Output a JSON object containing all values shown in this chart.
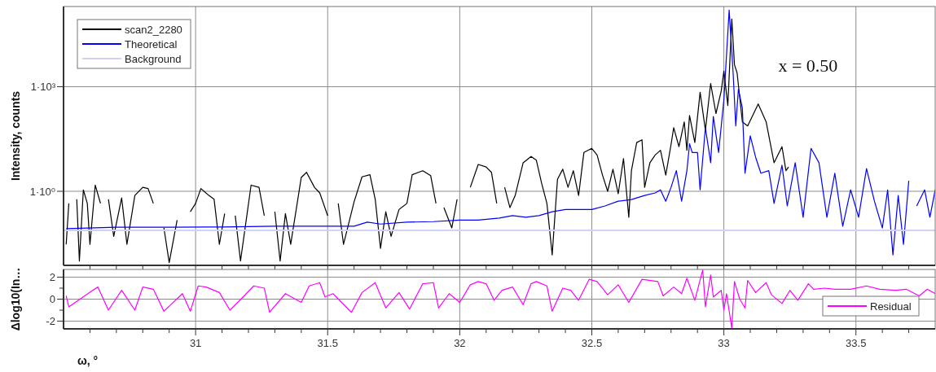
{
  "chart_data": [
    {
      "type": "line",
      "ylabel": "Intensity, counts",
      "log": "y",
      "xlim": [
        30.5,
        33.8
      ],
      "ylim": [
        0.0075,
        200000
      ],
      "xticks": [
        {
          "value": 30.6,
          "label": null
        },
        {
          "value": 30.7,
          "label": null
        },
        {
          "value": 30.8,
          "label": null
        },
        {
          "value": 30.9,
          "label": null
        },
        31,
        {
          "value": 31.1,
          "label": null
        },
        {
          "value": 31.2,
          "label": null
        },
        {
          "value": 31.3,
          "label": null
        },
        {
          "value": 31.4,
          "label": null
        },
        31.5,
        {
          "value": 31.6,
          "label": null
        },
        {
          "value": 31.7,
          "label": null
        },
        {
          "value": 31.8,
          "label": null
        },
        {
          "value": 31.9,
          "label": null
        },
        32,
        {
          "value": 32.1,
          "label": null
        },
        {
          "value": 32.2,
          "label": null
        },
        {
          "value": 32.3,
          "label": null
        },
        {
          "value": 32.4,
          "label": null
        },
        32.5,
        {
          "value": 32.6,
          "label": null
        },
        {
          "value": 32.7,
          "label": null
        },
        {
          "value": 32.8,
          "label": null
        },
        {
          "value": 32.9,
          "label": null
        },
        33,
        {
          "value": 33.1,
          "label": null
        },
        {
          "value": 33.2,
          "label": null
        },
        {
          "value": 33.3,
          "label": null
        },
        {
          "value": 33.4,
          "label": null
        },
        33.5,
        {
          "value": 33.6,
          "label": null
        },
        {
          "value": 33.7,
          "label": null
        }
      ],
      "yticks": [
        {
          "value": 1,
          "label": "1·10⁰"
        },
        {
          "value": 1000,
          "label": "1·10³"
        }
      ],
      "tick_labels": "y",
      "grid": true,
      "legend": "top left",
      "annotations": [
        "x = 0.50"
      ],
      "series": [
        {
          "name": "scan2_2280",
          "color": "#000000",
          "x": [
            30.51,
            30.52,
            30.53,
            30.55,
            30.56,
            30.575,
            30.59,
            30.6,
            30.62,
            30.64,
            30.65,
            30.67,
            30.69,
            30.72,
            30.74,
            30.77,
            30.8,
            30.82,
            30.84,
            30.86,
            30.88,
            30.9,
            30.93,
            30.96,
            30.98,
            31,
            31.02,
            31.05,
            31.07,
            31.09,
            31.11,
            31.13,
            31.15,
            31.17,
            31.21,
            31.24,
            31.26,
            31.28,
            31.3,
            31.32,
            31.34,
            31.36,
            31.4,
            31.42,
            31.45,
            31.47,
            31.5,
            31.52,
            31.54,
            31.56,
            31.6,
            31.63,
            31.66,
            31.68,
            31.7,
            31.72,
            31.74,
            31.77,
            31.8,
            31.82,
            31.86,
            31.89,
            31.91,
            31.92,
            31.94,
            31.97,
            31.99,
            32.02,
            32.04,
            32.07,
            32.1,
            32.12,
            32.14,
            32.15,
            32.17,
            32.19,
            32.21,
            32.24,
            32.27,
            32.29,
            32.31,
            32.33,
            32.35,
            32.37,
            32.39,
            32.41,
            32.43,
            32.45,
            32.47,
            32.5,
            32.52,
            32.54,
            32.56,
            32.58,
            32.6,
            32.62,
            32.64,
            32.65,
            32.67,
            32.69,
            32.7,
            32.72,
            32.74,
            32.76,
            32.78,
            32.8,
            32.81,
            32.83,
            32.85,
            32.86,
            32.87,
            32.89,
            32.91,
            32.93,
            32.95,
            32.97,
            32.99,
            33,
            33.015,
            33.03,
            33.04,
            33.05,
            33.07,
            33.09,
            33.13,
            33.16,
            33.19,
            33.22,
            33.235,
            33.245
          ],
          "values": [
            0.03,
            0.45,
            null,
            0.59,
            0.01,
            1.1,
            0.45,
            0.03,
            1.5,
            0.45,
            null,
            0.59,
            0.051,
            0.65,
            0.03,
            0.76,
            1.3,
            1.2,
            0.45,
            null,
            0.089,
            0.009,
            0.15,
            null,
            0.26,
            0.45,
            1.2,
            0.76,
            0.59,
            0.03,
            0.23,
            null,
            0.2,
            0.01,
            1.5,
            1.3,
            0.2,
            null,
            0.26,
            0.01,
            0.23,
            0.03,
            2.5,
            3.5,
            1.3,
            0.9,
            0.2,
            null,
            0.45,
            0.03,
            0.5,
            2.6,
            3,
            0.59,
            0.023,
            0.26,
            0.051,
            0.3,
            0.45,
            3,
            3.9,
            2.8,
            0.45,
            null,
            0.34,
            0.089,
            0.59,
            null,
            1.3,
            5.9,
            5,
            3.5,
            0.45,
            null,
            1.3,
            0.34,
            0.76,
            6.6,
            10,
            7.8,
            1.7,
            0.45,
            0.015,
            2.2,
            4.3,
            1.3,
            3.9,
            0.76,
            13,
            17,
            11,
            3,
            1,
            4.3,
            0.85,
            8.7,
            0.18,
            3.9,
            25,
            30,
            1.3,
            6.6,
            11,
            15,
            2.9,
            22,
            67,
            19,
            98,
            15,
            150,
            25,
            690,
            57,
            1240,
            170,
            760,
            2800,
            290,
            88000,
            4300,
            2500,
            98,
            75,
            320,
            98,
            6.6,
            19,
            3.9,
            5
          ]
        },
        {
          "name": "Theoretical",
          "color": "#0000ff",
          "x": [
            30.51,
            30.7,
            30.9,
            31.1,
            31.3,
            31.5,
            31.6,
            31.65,
            31.7,
            31.8,
            31.9,
            32,
            32.07,
            32.15,
            32.2,
            32.25,
            32.3,
            32.35,
            32.4,
            32.45,
            32.5,
            32.55,
            32.6,
            32.65,
            32.7,
            32.74,
            32.76,
            32.78,
            32.8,
            32.82,
            32.84,
            32.86,
            32.87,
            32.88,
            32.9,
            32.91,
            32.93,
            32.95,
            32.96,
            32.98,
            33,
            33.02,
            33.035,
            33.045,
            33.055,
            33.07,
            33.08,
            33.1,
            33.12,
            33.14,
            33.17,
            33.19,
            33.22,
            33.24,
            33.27,
            33.3,
            33.33,
            33.36,
            33.39,
            33.42,
            33.45,
            33.48,
            33.51,
            33.54,
            33.57,
            33.6,
            33.62,
            33.64,
            33.66,
            33.68,
            33.7,
            33.71,
            33.73,
            33.76,
            33.78,
            33.8
          ],
          "values": [
            0.085,
            0.093,
            0.093,
            0.095,
            0.1,
            0.1,
            0.1,
            0.13,
            0.115,
            0.13,
            0.135,
            0.15,
            0.15,
            0.17,
            0.2,
            0.18,
            0.2,
            0.26,
            0.3,
            0.3,
            0.3,
            0.38,
            0.52,
            0.58,
            0.76,
            0.9,
            1.1,
            0.52,
            1.3,
            3.9,
            0.52,
            3.9,
            23,
            13,
            13,
            1.1,
            67,
            6.6,
            140,
            13,
            420,
            158000,
            2500,
            75,
            850,
            245,
            3.3,
            39,
            9.6,
            3.3,
            3.9,
            0.45,
            5.6,
            0.38,
            6.6,
            0.18,
            17,
            6.6,
            0.18,
            3.3,
            0.1,
            1.1,
            0.18,
            4.5,
            0.52,
            0.088,
            1.1,
            0.015,
            0.76,
            0.03,
            2,
            null,
            0.38,
            1.1,
            0.18,
            1.1
          ]
        },
        {
          "name": "Background",
          "color": "#d0d0f8",
          "x": [
            30.5,
            33.8
          ],
          "values": [
            0.076,
            0.076
          ]
        }
      ]
    },
    {
      "type": "line",
      "ylabel": "Δlog10(In…",
      "xlabel": "ω, °",
      "xlim": [
        30.5,
        33.8
      ],
      "ylim": [
        -2.7,
        2.7
      ],
      "xticks": [
        {
          "value": 30.6,
          "label": null
        },
        {
          "value": 30.7,
          "label": null
        },
        {
          "value": 30.8,
          "label": null
        },
        {
          "value": 30.9,
          "label": null
        },
        31,
        {
          "value": 31.1,
          "label": null
        },
        {
          "value": 31.2,
          "label": null
        },
        {
          "value": 31.3,
          "label": null
        },
        {
          "value": 31.4,
          "label": null
        },
        31.5,
        {
          "value": 31.6,
          "label": null
        },
        {
          "value": 31.7,
          "label": null
        },
        {
          "value": 31.8,
          "label": null
        },
        {
          "value": 31.9,
          "label": null
        },
        32,
        {
          "value": 32.1,
          "label": null
        },
        {
          "value": 32.2,
          "label": null
        },
        {
          "value": 32.3,
          "label": null
        },
        {
          "value": 32.4,
          "label": null
        },
        32.5,
        {
          "value": 32.6,
          "label": null
        },
        {
          "value": 32.7,
          "label": null
        },
        {
          "value": 32.8,
          "label": null
        },
        {
          "value": 32.9,
          "label": null
        },
        33,
        {
          "value": 33.1,
          "label": null
        },
        {
          "value": 33.2,
          "label": null
        },
        {
          "value": 33.3,
          "label": null
        },
        {
          "value": 33.4,
          "label": null
        },
        33.5,
        {
          "value": 33.6,
          "label": null
        },
        {
          "value": 33.7,
          "label": null
        }
      ],
      "yticks": [
        -2,
        {
          "value": -1,
          "label": null
        },
        0,
        {
          "value": 1,
          "label": null
        },
        2
      ],
      "grid": true,
      "legend": "bottom right",
      "series": [
        {
          "name": "Residual",
          "color": "#ff00ff",
          "x": [
            30.51,
            30.52,
            30.61,
            30.63,
            30.67,
            30.72,
            30.77,
            30.8,
            30.84,
            30.88,
            30.95,
            30.98,
            31.01,
            31.04,
            31.09,
            31.13,
            31.18,
            31.22,
            31.26,
            31.28,
            31.34,
            31.4,
            31.43,
            31.47,
            31.49,
            31.52,
            31.59,
            31.63,
            31.68,
            31.72,
            31.77,
            31.81,
            31.86,
            31.9,
            31.92,
            31.96,
            32,
            32.04,
            32.07,
            32.1,
            32.13,
            32.16,
            32.2,
            32.24,
            32.27,
            32.29,
            32.33,
            32.35,
            32.39,
            32.42,
            32.45,
            32.49,
            32.52,
            32.56,
            32.6,
            32.64,
            32.69,
            32.75,
            32.77,
            32.81,
            32.84,
            32.86,
            32.89,
            32.92,
            32.93,
            32.95,
            32.96,
            32.99,
            33,
            33.01,
            33.03,
            33.04,
            33.06,
            33.08,
            33.09,
            33.12,
            33.16,
            33.18,
            33.22,
            33.25,
            33.28,
            33.32,
            33.34,
            33.38,
            33.42,
            33.48,
            33.54,
            33.59,
            33.65,
            33.69,
            33.74,
            33.77,
            33.8
          ],
          "values": [
            0.3,
            -0.7,
            0.8,
            1.1,
            -1,
            0.8,
            -1,
            1.1,
            0.9,
            -1.1,
            0.5,
            -1.1,
            1.2,
            1.1,
            0.6,
            -1,
            0.2,
            1.2,
            1,
            -1.2,
            0.5,
            -0.3,
            1.2,
            1.5,
            0.2,
            0.5,
            -1.2,
            0.6,
            1.5,
            -0.8,
            0.6,
            -0.9,
            1.4,
            1.5,
            -0.8,
            0.5,
            -0.3,
            1.3,
            1.6,
            1.4,
            -0.1,
            0.8,
            1.1,
            -0.5,
            1.4,
            1.6,
            1.2,
            -1.1,
            1,
            0.8,
            -0.1,
            1.8,
            1.6,
            0.4,
            1.3,
            -0.3,
            1.8,
            1.6,
            0.3,
            1.1,
            0.5,
            1.9,
            -0.1,
            2.65,
            -0.7,
            2.2,
            0.2,
            0.8,
            -1,
            0.5,
            -2.65,
            1.6,
            0,
            -0.8,
            1.7,
            0.6,
            1.5,
            0.4,
            -0.4,
            0.8,
            -0.1,
            1.4,
            0.9,
            1,
            0.9,
            0.9,
            1.2,
            0.9,
            0.8,
            0.9,
            0.3,
            0.9,
            0.5
          ]
        }
      ]
    }
  ]
}
